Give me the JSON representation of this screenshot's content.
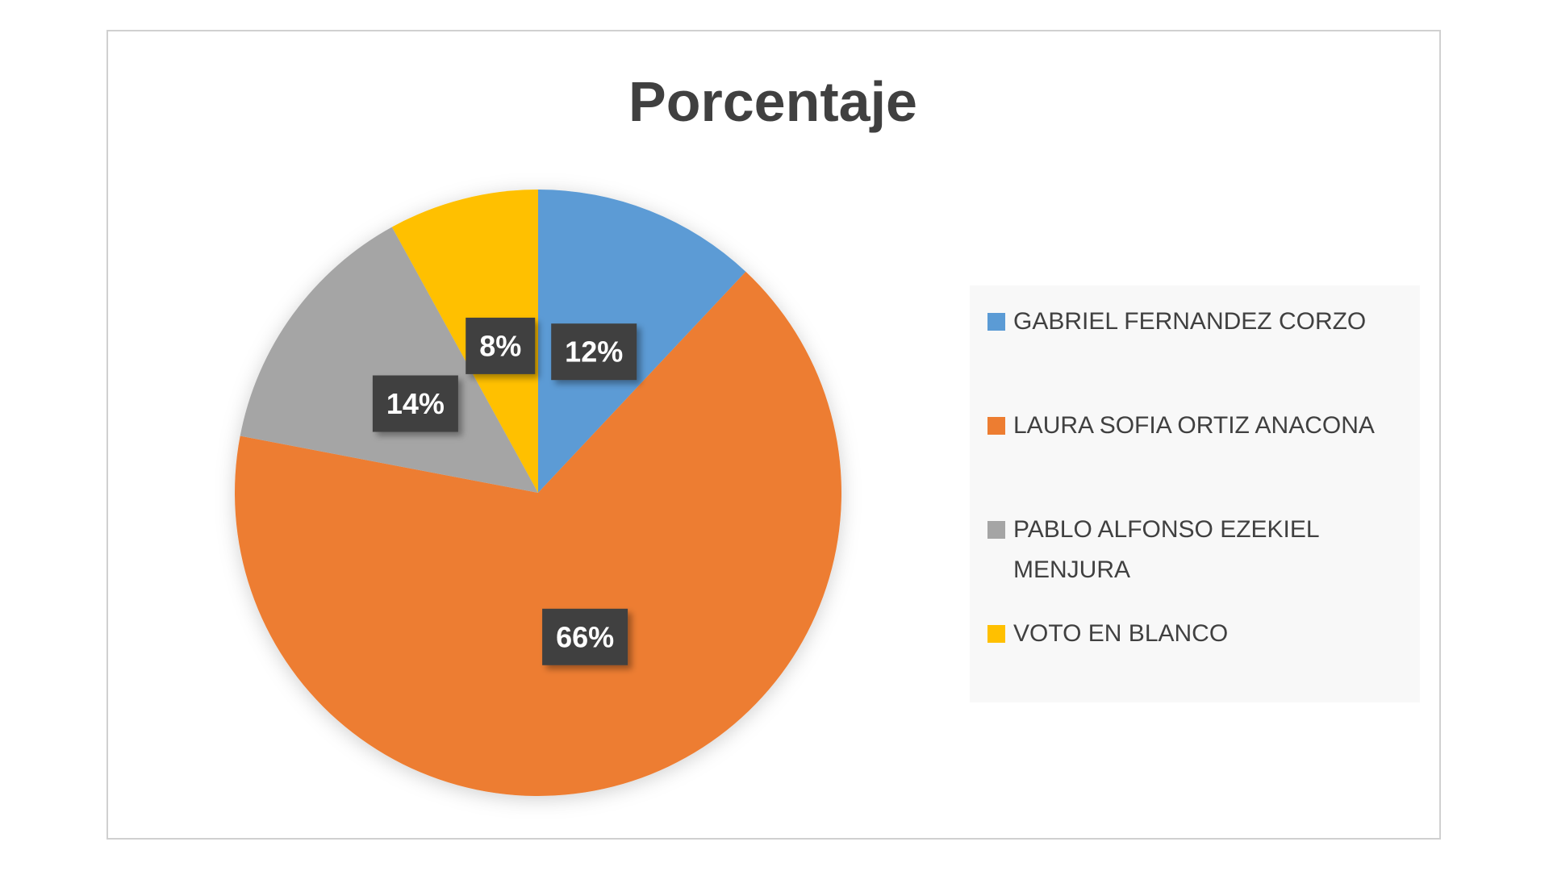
{
  "chart_data": {
    "type": "pie",
    "title": "Porcentaje",
    "categories": [
      "GABRIEL FERNANDEZ CORZO",
      "LAURA SOFIA ORTIZ ANACONA",
      "PABLO ALFONSO EZEKIEL MENJURA",
      "VOTO EN BLANCO"
    ],
    "values": [
      12,
      66,
      14,
      8
    ],
    "value_labels": [
      "12%",
      "66%",
      "14%",
      "8%"
    ],
    "colors": [
      "#5b9bd5",
      "#ed7d31",
      "#a5a5a5",
      "#ffc000"
    ]
  }
}
